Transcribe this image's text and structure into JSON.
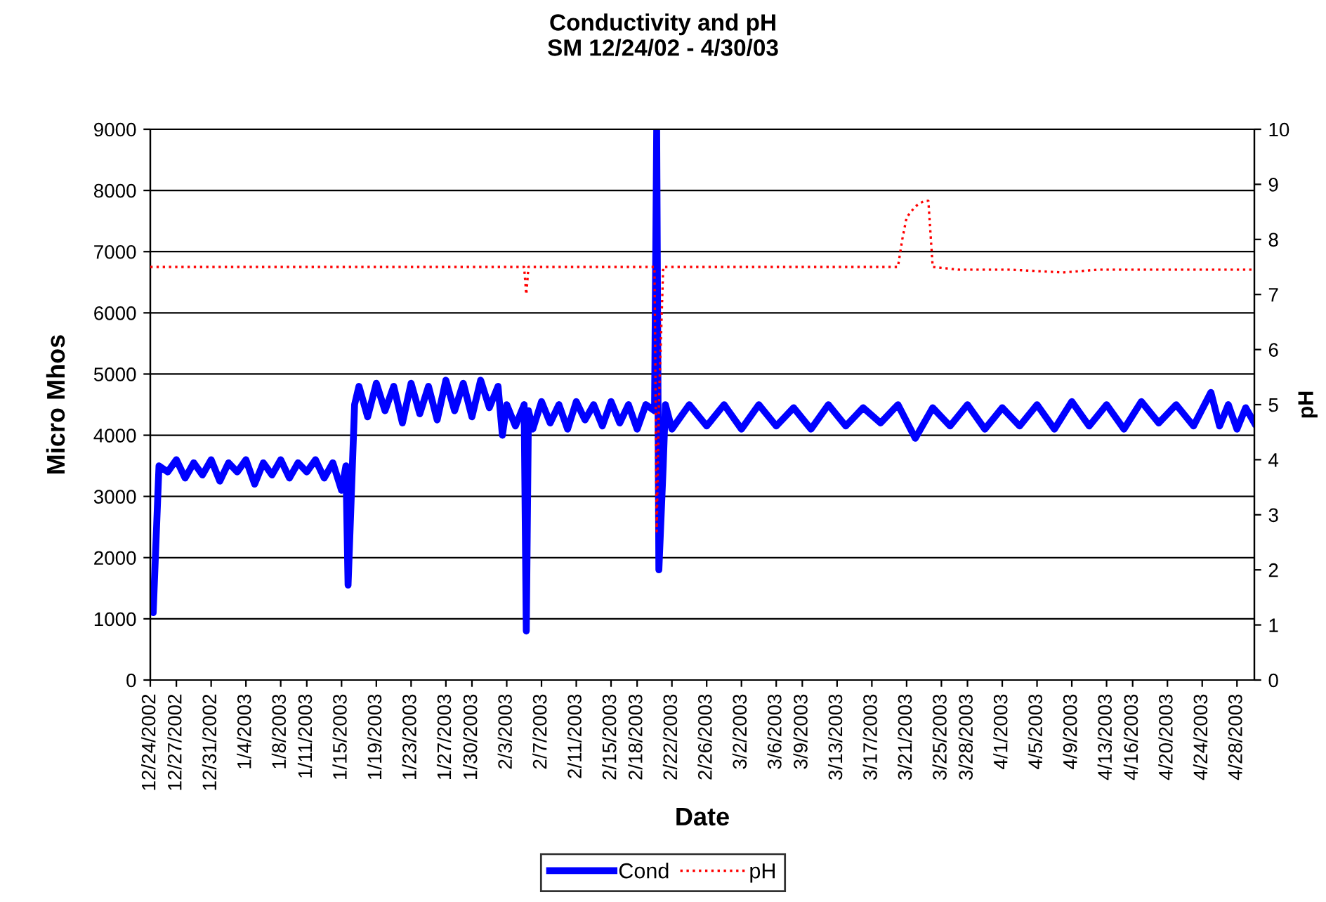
{
  "chart_data": {
    "type": "line",
    "title": "Conductivity and pH\nSM 12/24/02 - 4/30/03",
    "xlabel": "Date",
    "ylabel": "Micro Mhos",
    "y2label": "pH",
    "grid": "y",
    "legend": "bottom",
    "marker": "none",
    "xlim": [
      "2002-12-24",
      "2003-04-30"
    ],
    "ylim": [
      0,
      9000
    ],
    "yticks": [
      0,
      1000,
      2000,
      3000,
      4000,
      5000,
      6000,
      7000,
      8000,
      9000
    ],
    "y2lim": [
      0,
      10
    ],
    "y2ticks": [
      0,
      1,
      2,
      3,
      4,
      5,
      6,
      7,
      8,
      9,
      10
    ],
    "xticks": [
      {
        "value": "2002-12-24",
        "label": "12/24/2002"
      },
      {
        "value": "2002-12-27",
        "label": "12/27/2002"
      },
      {
        "value": "2002-12-31",
        "label": "12/31/2002"
      },
      {
        "value": "2003-01-04",
        "label": "1/4/2003"
      },
      {
        "value": "2003-01-08",
        "label": "1/8/2003"
      },
      {
        "value": "2003-01-11",
        "label": "1/11/2003"
      },
      {
        "value": "2003-01-15",
        "label": "1/15/2003"
      },
      {
        "value": "2003-01-19",
        "label": "1/19/2003"
      },
      {
        "value": "2003-01-23",
        "label": "1/23/2003"
      },
      {
        "value": "2003-01-27",
        "label": "1/27/2003"
      },
      {
        "value": "2003-01-30",
        "label": "1/30/2003"
      },
      {
        "value": "2003-02-03",
        "label": "2/3/2003"
      },
      {
        "value": "2003-02-07",
        "label": "2/7/2003"
      },
      {
        "value": "2003-02-11",
        "label": "2/11/2003"
      },
      {
        "value": "2003-02-15",
        "label": "2/15/2003"
      },
      {
        "value": "2003-02-18",
        "label": "2/18/2003"
      },
      {
        "value": "2003-02-22",
        "label": "2/22/2003"
      },
      {
        "value": "2003-02-26",
        "label": "2/26/2003"
      },
      {
        "value": "2003-03-02",
        "label": "3/2/2003"
      },
      {
        "value": "2003-03-06",
        "label": "3/6/2003"
      },
      {
        "value": "2003-03-09",
        "label": "3/9/2003"
      },
      {
        "value": "2003-03-13",
        "label": "3/13/2003"
      },
      {
        "value": "2003-03-17",
        "label": "3/17/2003"
      },
      {
        "value": "2003-03-21",
        "label": "3/21/2003"
      },
      {
        "value": "2003-03-25",
        "label": "3/25/2003"
      },
      {
        "value": "2003-03-28",
        "label": "3/28/2003"
      },
      {
        "value": "2003-04-01",
        "label": "4/1/2003"
      },
      {
        "value": "2003-04-05",
        "label": "4/5/2003"
      },
      {
        "value": "2003-04-09",
        "label": "4/9/2003"
      },
      {
        "value": "2003-04-13",
        "label": "4/13/2003"
      },
      {
        "value": "2003-04-16",
        "label": "4/16/2003"
      },
      {
        "value": "2003-04-20",
        "label": "4/20/2003"
      },
      {
        "value": "2003-04-24",
        "label": "4/24/2003"
      },
      {
        "value": "2003-04-28",
        "label": "4/28/2003"
      }
    ],
    "series": [
      {
        "name": "Cond",
        "color": "#0000ff",
        "line_style": "solid",
        "x": [
          "2002-12-24T00:00",
          "2002-12-24T08:00",
          "2002-12-25",
          "2002-12-26",
          "2002-12-27",
          "2002-12-28",
          "2002-12-29",
          "2002-12-30",
          "2002-12-31",
          "2003-01-01",
          "2003-01-02",
          "2003-01-03",
          "2003-01-04",
          "2003-01-05",
          "2003-01-06",
          "2003-01-07",
          "2003-01-08",
          "2003-01-09",
          "2003-01-10",
          "2003-01-11",
          "2003-01-12",
          "2003-01-13",
          "2003-01-14",
          "2003-01-15T00:00",
          "2003-01-15T12:00",
          "2003-01-15T18:00",
          "2003-01-16T12:00",
          "2003-01-17",
          "2003-01-18",
          "2003-01-19",
          "2003-01-20",
          "2003-01-21",
          "2003-01-22",
          "2003-01-23",
          "2003-01-24",
          "2003-01-25",
          "2003-01-26",
          "2003-01-27",
          "2003-01-28",
          "2003-01-29",
          "2003-01-30",
          "2003-01-31",
          "2003-02-01",
          "2003-02-02T00:00",
          "2003-02-02T12:00",
          "2003-02-03",
          "2003-02-04",
          "2003-02-05T00:00",
          "2003-02-05T06:00",
          "2003-02-05T12:00",
          "2003-02-06",
          "2003-02-07",
          "2003-02-08",
          "2003-02-09",
          "2003-02-10",
          "2003-02-11",
          "2003-02-12",
          "2003-02-13",
          "2003-02-14",
          "2003-02-15",
          "2003-02-16",
          "2003-02-17",
          "2003-02-18",
          "2003-02-19",
          "2003-02-20T00:00",
          "2003-02-20T06:00",
          "2003-02-20T12:00",
          "2003-02-21T00:00",
          "2003-02-21T06:00",
          "2003-02-22",
          "2003-02-24",
          "2003-02-26",
          "2003-02-28",
          "2003-03-02",
          "2003-03-04",
          "2003-03-06",
          "2003-03-08",
          "2003-03-10",
          "2003-03-12",
          "2003-03-14",
          "2003-03-16",
          "2003-03-18",
          "2003-03-20",
          "2003-03-22",
          "2003-03-24",
          "2003-03-26",
          "2003-03-28",
          "2003-03-30",
          "2003-04-01",
          "2003-04-03",
          "2003-04-05",
          "2003-04-07",
          "2003-04-09",
          "2003-04-11",
          "2003-04-13",
          "2003-04-15",
          "2003-04-17",
          "2003-04-19",
          "2003-04-21",
          "2003-04-23",
          "2003-04-25",
          "2003-04-26",
          "2003-04-27",
          "2003-04-28",
          "2003-04-29",
          "2003-04-30"
        ],
        "values": [
          1300,
          1100,
          3500,
          3400,
          3600,
          3300,
          3550,
          3350,
          3600,
          3250,
          3550,
          3400,
          3600,
          3200,
          3550,
          3350,
          3600,
          3300,
          3550,
          3400,
          3600,
          3300,
          3550,
          3100,
          3500,
          1550,
          4500,
          4800,
          4300,
          4850,
          4400,
          4800,
          4200,
          4850,
          4350,
          4800,
          4250,
          4900,
          4400,
          4850,
          4300,
          4900,
          4450,
          4800,
          4000,
          4500,
          4150,
          4500,
          800,
          4400,
          4100,
          4550,
          4200,
          4500,
          4100,
          4550,
          4250,
          4500,
          4150,
          4550,
          4200,
          4500,
          4100,
          4500,
          4400,
          9000,
          1800,
          3500,
          4500,
          4100,
          4500,
          4150,
          4500,
          4100,
          4500,
          4150,
          4450,
          4100,
          4500,
          4150,
          4450,
          4200,
          4500,
          3950,
          4450,
          4150,
          4500,
          4100,
          4450,
          4150,
          4500,
          4100,
          4550,
          4150,
          4500,
          4100,
          4550,
          4200,
          4500,
          4150,
          4700,
          4150,
          4500,
          4100,
          4450,
          4200
        ]
      },
      {
        "name": "pH",
        "color": "#ff0000",
        "line_style": "dotted",
        "axis": "y2",
        "x": [
          "2002-12-24",
          "2002-12-31",
          "2003-01-10",
          "2003-01-20",
          "2003-02-01",
          "2003-02-05T00:00",
          "2003-02-05T06:00",
          "2003-02-05T12:00",
          "2003-02-12",
          "2003-02-20T00:00",
          "2003-02-20T06:00",
          "2003-02-20T12:00",
          "2003-02-21",
          "2003-03-01",
          "2003-03-10",
          "2003-03-18",
          "2003-03-20T00:00",
          "2003-03-20T12:00",
          "2003-03-21",
          "2003-03-21T12:00",
          "2003-03-22",
          "2003-03-23",
          "2003-03-23T12:00",
          "2003-03-24",
          "2003-03-27",
          "2003-04-02",
          "2003-04-08",
          "2003-04-12",
          "2003-04-18",
          "2003-04-24",
          "2003-04-30"
        ],
        "values": [
          7.5,
          7.5,
          7.5,
          7.5,
          7.5,
          7.5,
          7.0,
          7.5,
          7.5,
          7.5,
          2.7,
          5.0,
          7.5,
          7.5,
          7.5,
          7.5,
          7.5,
          8.0,
          8.4,
          8.5,
          8.6,
          8.7,
          8.7,
          7.5,
          7.45,
          7.45,
          7.4,
          7.45,
          7.45,
          7.45,
          7.45
        ]
      }
    ]
  }
}
